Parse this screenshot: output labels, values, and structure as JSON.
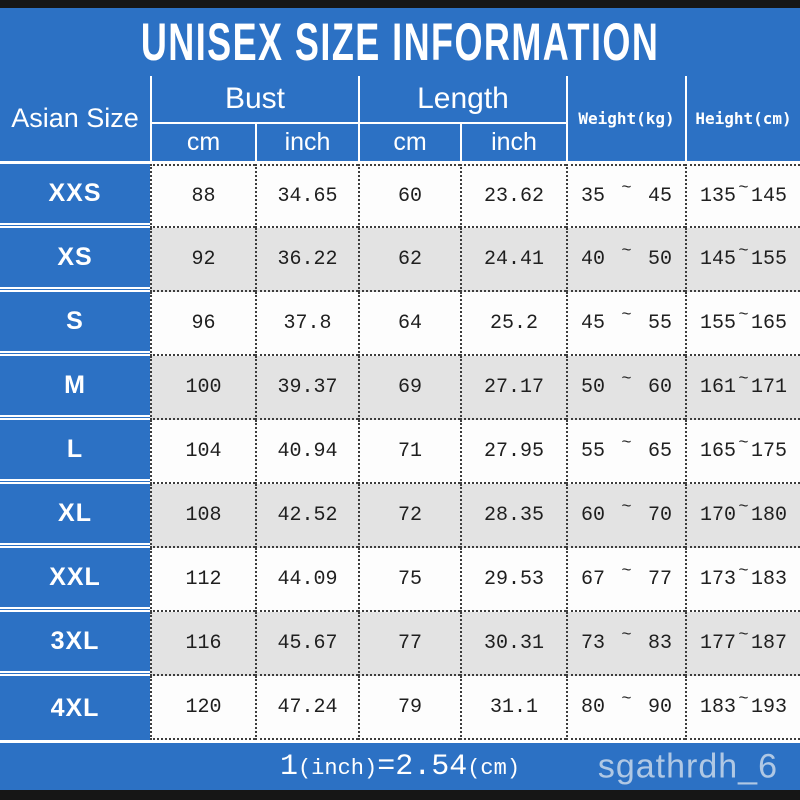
{
  "chart_data": {
    "type": "table",
    "title": "UNISEX SIZE INFORMATION",
    "corner_header": "Asian Size",
    "groups": [
      {
        "label": "Bust",
        "units": [
          "cm",
          "inch"
        ]
      },
      {
        "label": "Length",
        "units": [
          "cm",
          "inch"
        ]
      }
    ],
    "scalar_headers": [
      "Weight(kg)",
      "Height(cm)"
    ],
    "tilde": "~",
    "rows": [
      {
        "size": "XXS",
        "bust_cm": "88",
        "bust_inch": "34.65",
        "length_cm": "60",
        "length_inch": "23.62",
        "weight_min": "35",
        "weight_max": "45",
        "height_min": "135",
        "height_max": "145"
      },
      {
        "size": "XS",
        "bust_cm": "92",
        "bust_inch": "36.22",
        "length_cm": "62",
        "length_inch": "24.41",
        "weight_min": "40",
        "weight_max": "50",
        "height_min": "145",
        "height_max": "155"
      },
      {
        "size": "S",
        "bust_cm": "96",
        "bust_inch": "37.8",
        "length_cm": "64",
        "length_inch": "25.2",
        "weight_min": "45",
        "weight_max": "55",
        "height_min": "155",
        "height_max": "165"
      },
      {
        "size": "M",
        "bust_cm": "100",
        "bust_inch": "39.37",
        "length_cm": "69",
        "length_inch": "27.17",
        "weight_min": "50",
        "weight_max": "60",
        "height_min": "161",
        "height_max": "171"
      },
      {
        "size": "L",
        "bust_cm": "104",
        "bust_inch": "40.94",
        "length_cm": "71",
        "length_inch": "27.95",
        "weight_min": "55",
        "weight_max": "65",
        "height_min": "165",
        "height_max": "175"
      },
      {
        "size": "XL",
        "bust_cm": "108",
        "bust_inch": "42.52",
        "length_cm": "72",
        "length_inch": "28.35",
        "weight_min": "60",
        "weight_max": "70",
        "height_min": "170",
        "height_max": "180"
      },
      {
        "size": "XXL",
        "bust_cm": "112",
        "bust_inch": "44.09",
        "length_cm": "75",
        "length_inch": "29.53",
        "weight_min": "67",
        "weight_max": "77",
        "height_min": "173",
        "height_max": "183"
      },
      {
        "size": "3XL",
        "bust_cm": "116",
        "bust_inch": "45.67",
        "length_cm": "77",
        "length_inch": "30.31",
        "weight_min": "73",
        "weight_max": "83",
        "height_min": "177",
        "height_max": "187"
      },
      {
        "size": "4XL",
        "bust_cm": "120",
        "bust_inch": "47.24",
        "length_cm": "79",
        "length_inch": "31.1",
        "weight_min": "80",
        "weight_max": "90",
        "height_min": "183",
        "height_max": "193"
      }
    ],
    "footer": {
      "num1": "1",
      "unit1": "(inch)",
      "equals": "=",
      "num2": "2.54",
      "unit2": "(cm)"
    }
  },
  "watermark": "sgathrdh_6",
  "colors": {
    "accent_blue": "#2c71c4",
    "row_base": "#fdfdfd",
    "row_alt": "#e3e3e3",
    "frame_black": "#161616",
    "grid_dot": "#3d3d3d",
    "text_dark": "#1f1f1f",
    "header_text": "#ffffff",
    "watermark_color": "#dde6ef"
  }
}
